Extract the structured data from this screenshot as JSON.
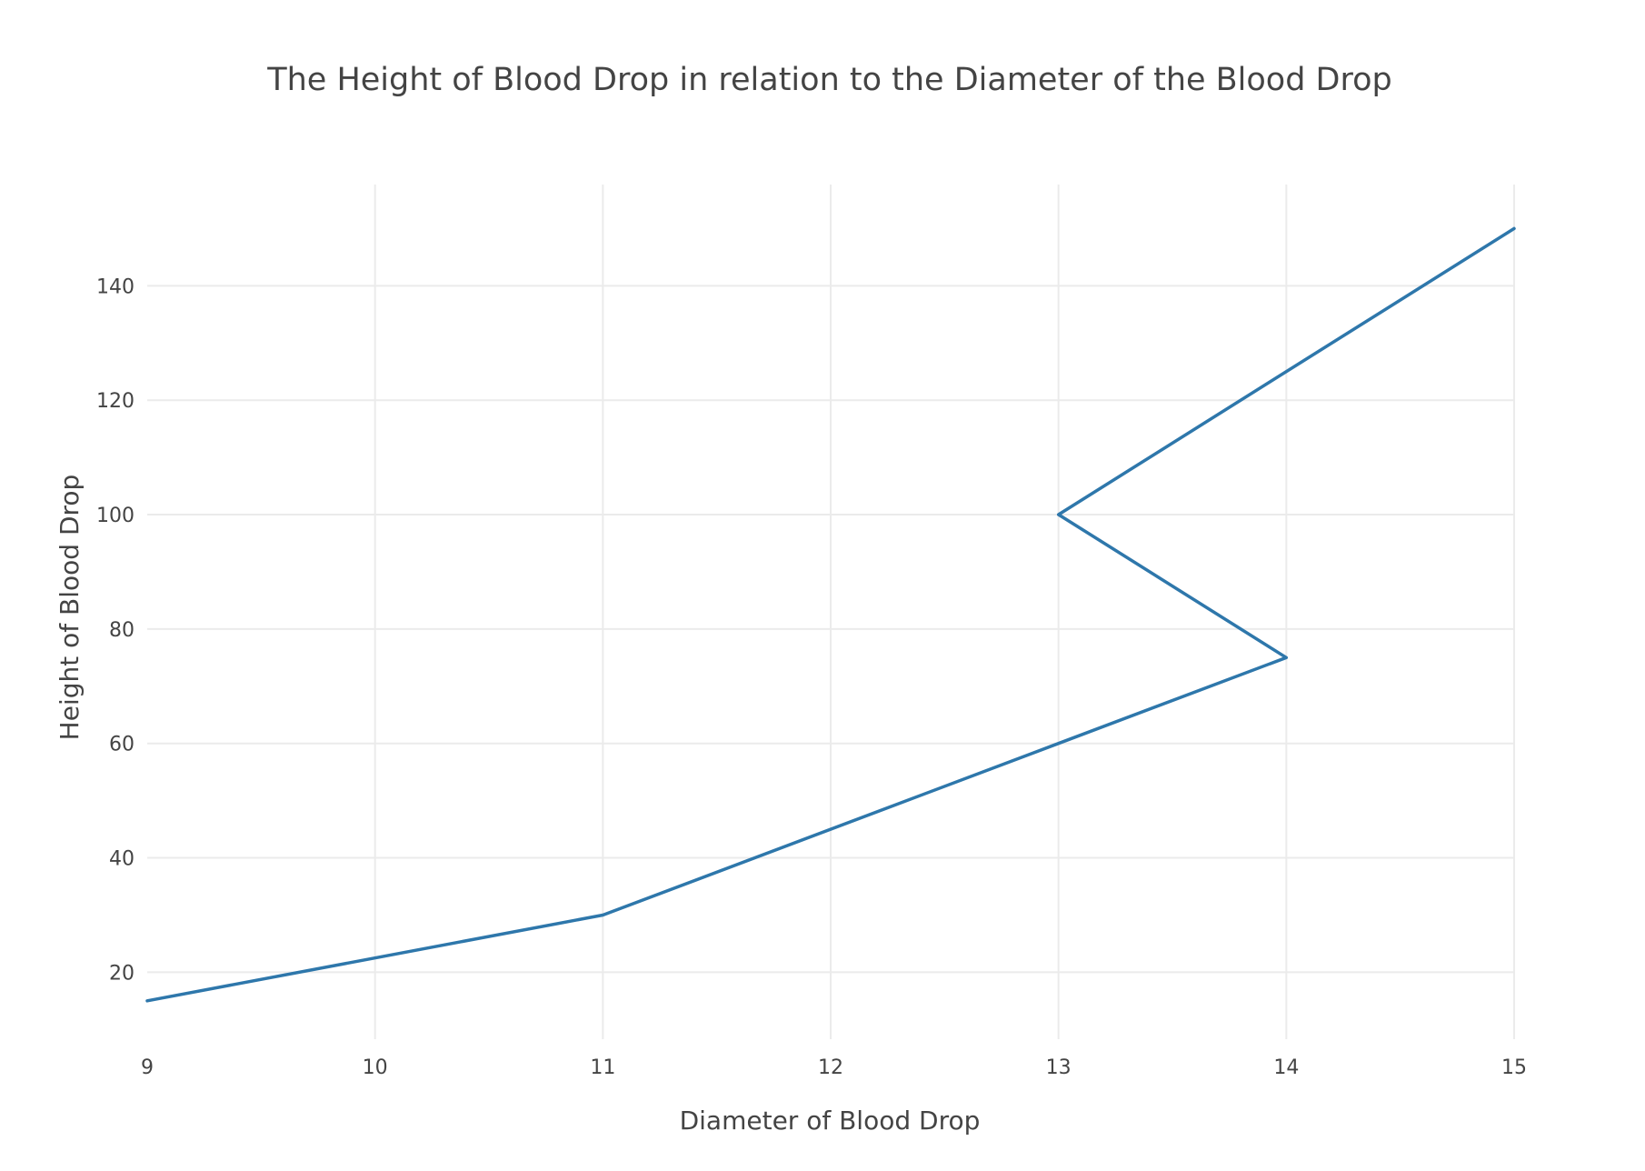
{
  "chart_data": {
    "type": "line",
    "title": "The Height of Blood Drop in relation to the Diameter of the Blood Drop",
    "xlabel": "Diameter of Blood Drop",
    "ylabel": "Height of Blood Drop",
    "xlim": [
      9,
      15
    ],
    "ylim": [
      8.3,
      157.7
    ],
    "xticks": [
      9,
      10,
      11,
      12,
      13,
      14,
      15
    ],
    "yticks": [
      20,
      40,
      60,
      80,
      100,
      120,
      140
    ],
    "grid": true,
    "legend": "none",
    "series": [
      {
        "color": "#2e77ab",
        "x": [
          9,
          11,
          13,
          14,
          13,
          15
        ],
        "y": [
          15,
          30,
          60,
          75,
          100,
          150
        ]
      }
    ]
  }
}
